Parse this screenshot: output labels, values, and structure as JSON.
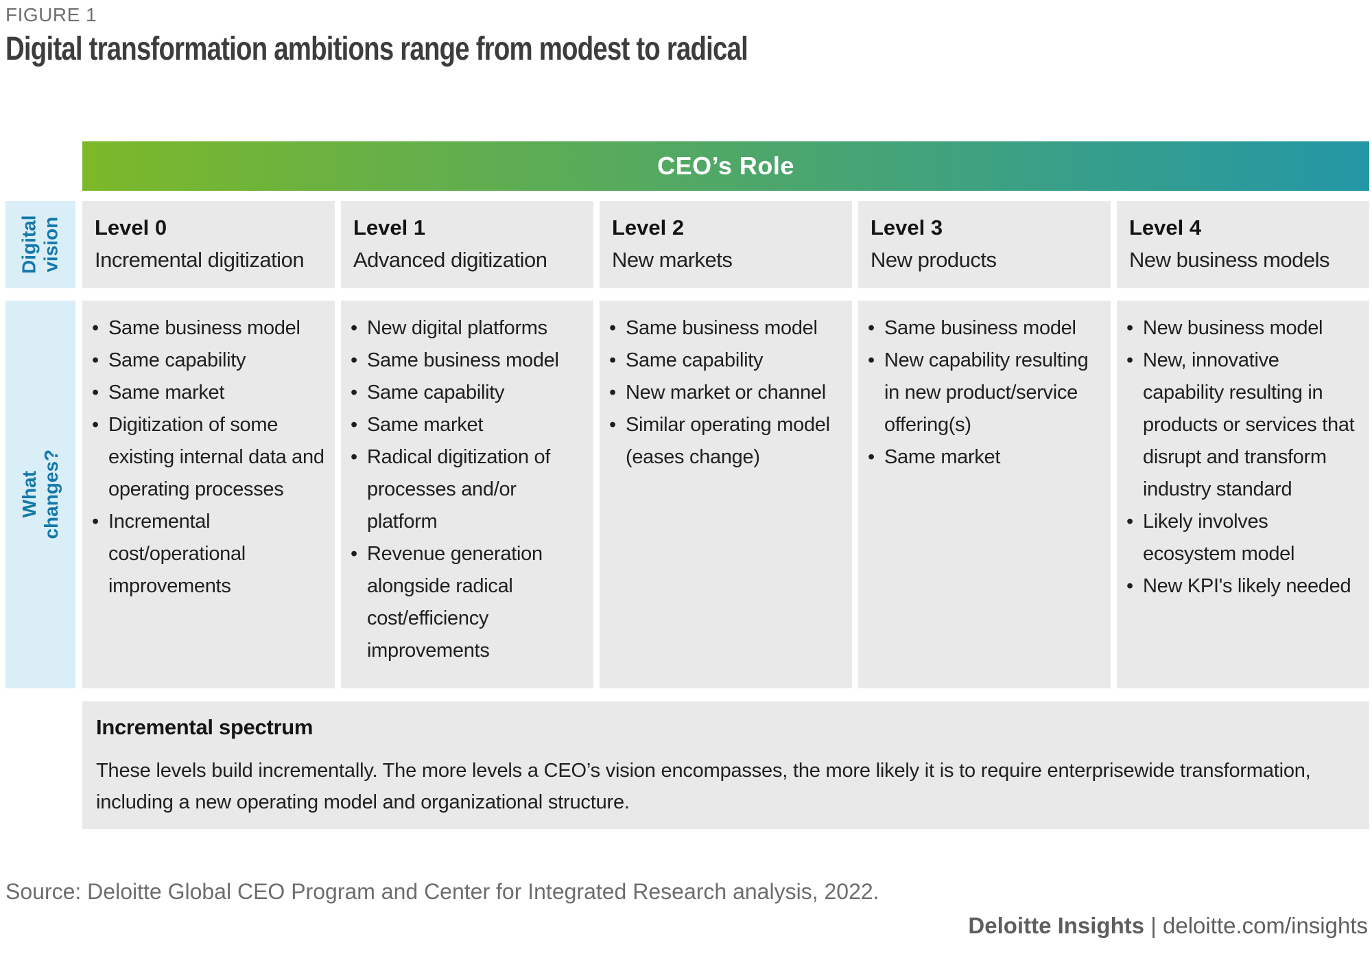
{
  "figure_label": "FIGURE 1",
  "title": "Digital transformation ambitions range from modest to radical",
  "banner": {
    "label": "CEO’s Role",
    "gradient_from": "#7cb829",
    "gradient_to": "#2397a6"
  },
  "row_labels": {
    "vision": "Digital\nvision",
    "changes": "What\nchanges?"
  },
  "colors": {
    "cell_background": "#e9e9e9",
    "sidebar_background": "#daeef8",
    "sidebar_text": "#1478aa"
  },
  "columns": [
    {
      "level": "Level 0",
      "vision": "Incremental digitization",
      "changes": [
        "Same business model",
        "Same capability",
        "Same market",
        "Digitization of some existing internal data and operating processes",
        "Incremental cost/operational improvements"
      ]
    },
    {
      "level": "Level 1",
      "vision": "Advanced digitization",
      "changes": [
        "New digital platforms",
        "Same business model",
        "Same capability",
        "Same market",
        "Radical digitization of processes and/or platform",
        "Revenue generation alongside radical cost/efficiency improvements"
      ]
    },
    {
      "level": "Level 2",
      "vision": "New markets",
      "changes": [
        "Same business model",
        "Same capability",
        "New market or channel",
        "Similar operating model (eases change)"
      ]
    },
    {
      "level": "Level 3",
      "vision": "New products",
      "changes": [
        "Same business model",
        "New capability resulting in new product/service offering(s)",
        "Same market"
      ]
    },
    {
      "level": "Level 4",
      "vision": "New business models",
      "changes": [
        "New business model",
        "New, innovative capability resulting in products or services that disrupt and transform industry standard",
        "Likely involves ecosystem model",
        "New KPI's likely needed"
      ]
    }
  ],
  "spectrum": {
    "heading": "Incremental spectrum",
    "text": "These levels build incrementally. The more levels a CEO’s vision encompasses, the more likely it is to require enterprisewide transformation, including a new operating model and organizational structure."
  },
  "source_note": "Source: Deloitte Global CEO Program and Center for Integrated Research analysis, 2022.",
  "footer": {
    "brand": "Deloitte Insights",
    "separator": "|",
    "url": "deloitte.com/insights"
  }
}
